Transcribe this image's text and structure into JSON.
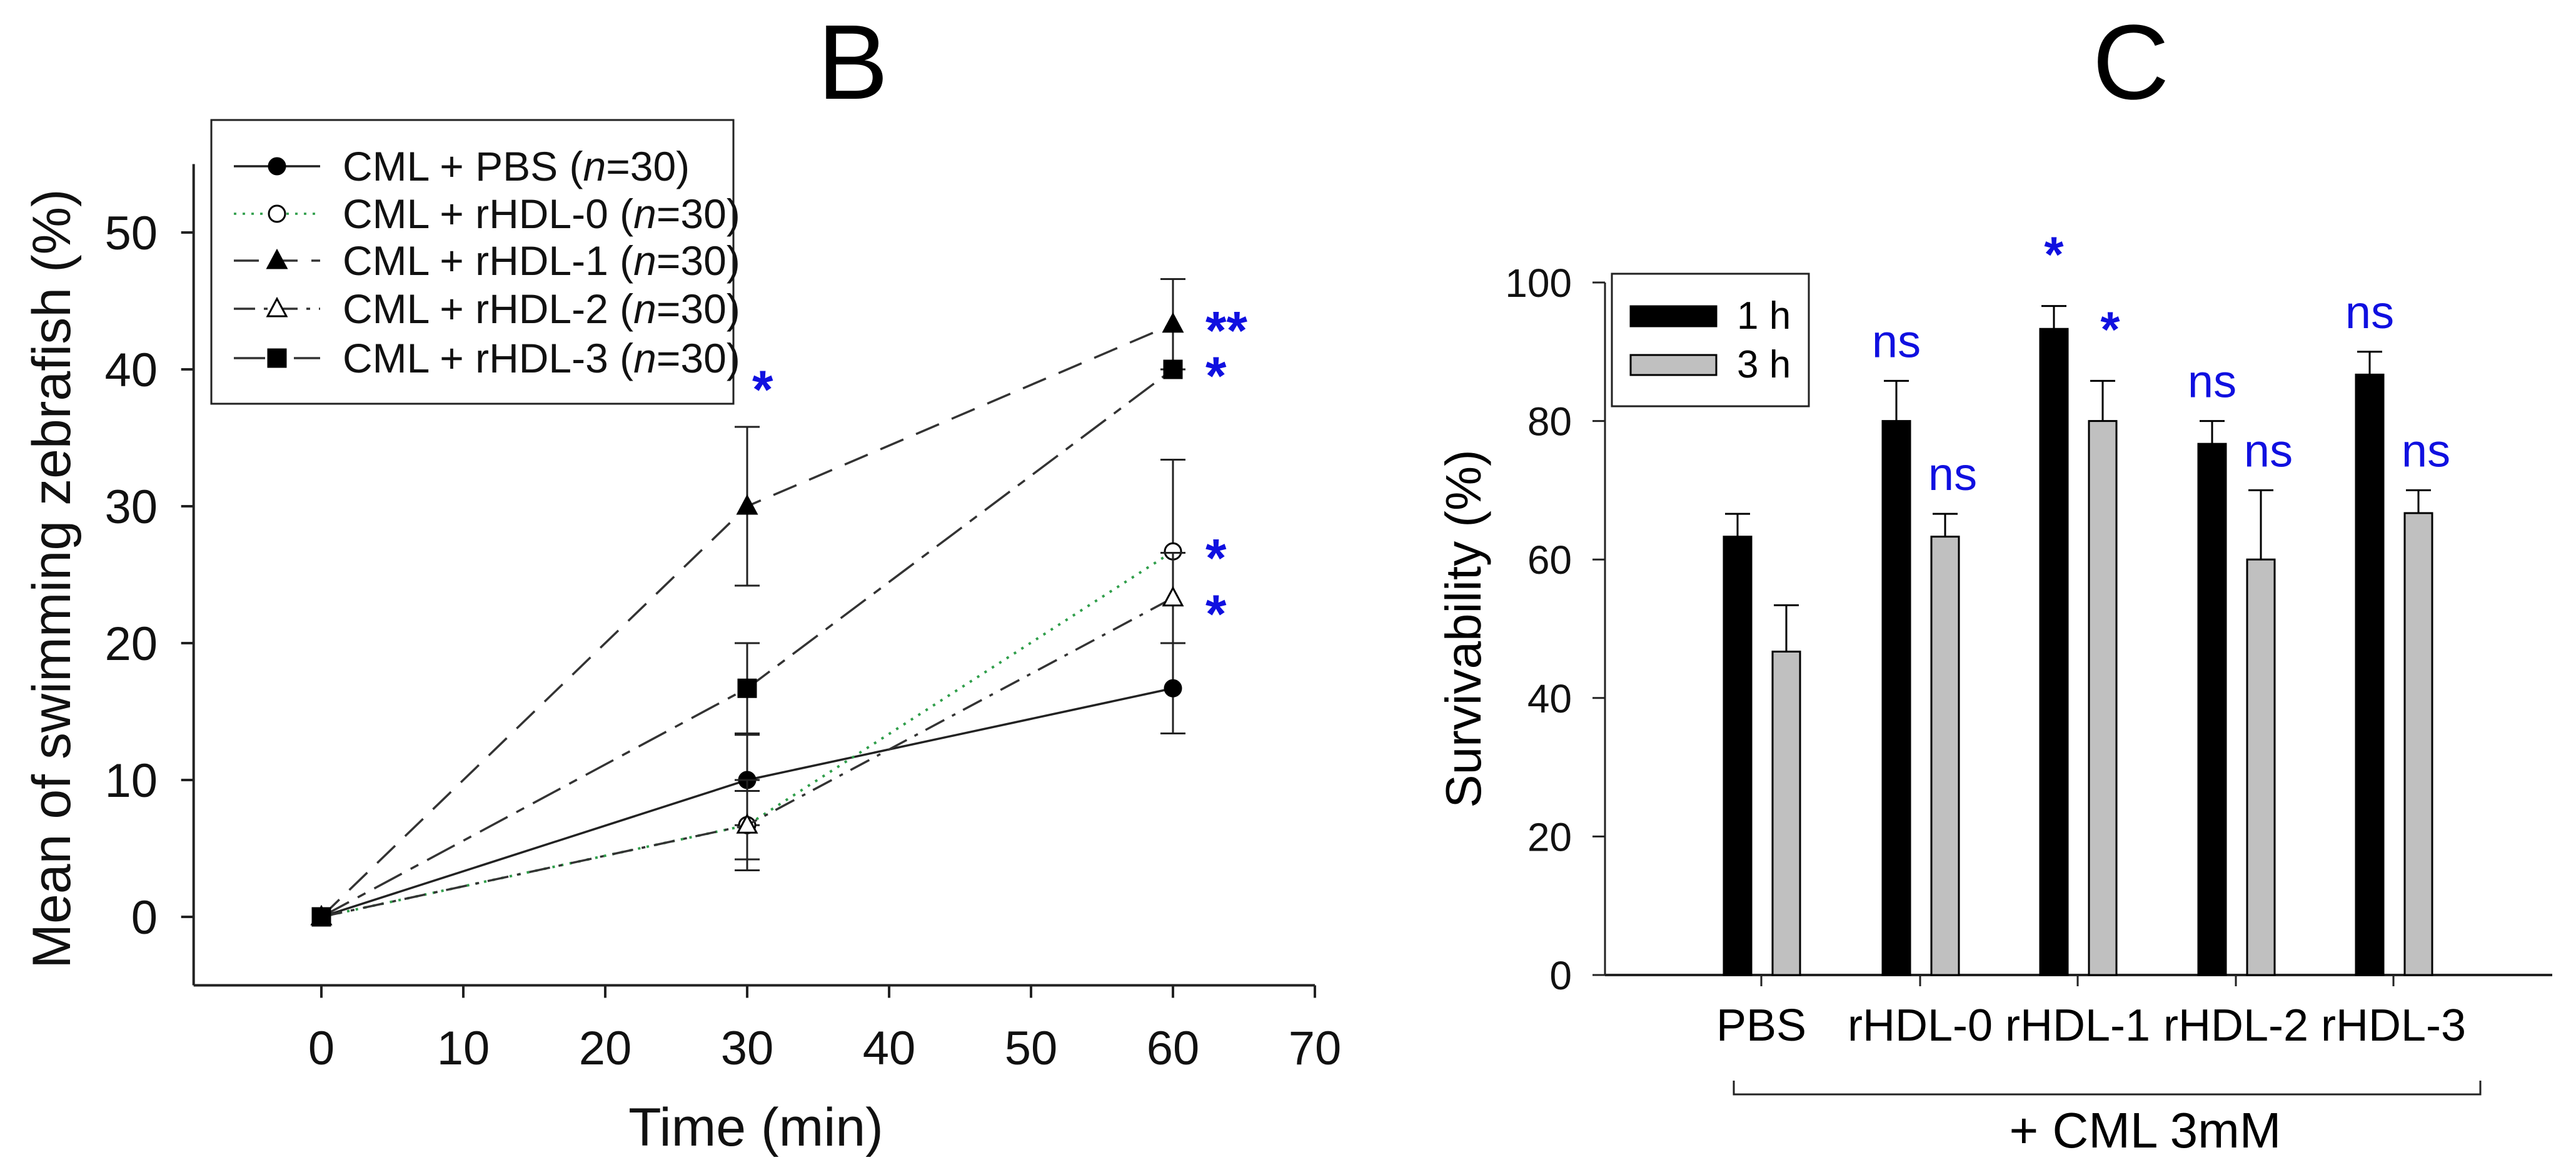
{
  "chart_data": [
    {
      "panel": "B",
      "type": "line",
      "title": "B",
      "xlabel": "Time (min)",
      "ylabel": "Mean of swimming zebrafish (%)",
      "xlim": [
        -9,
        70
      ],
      "ylim": [
        -5,
        55
      ],
      "xticks": [
        "0",
        "10",
        "20",
        "30",
        "40",
        "50",
        "60",
        "70"
      ],
      "yticks": [
        "0",
        "10",
        "20",
        "30",
        "40",
        "50"
      ],
      "legend_position": "top-left",
      "x": [
        0,
        30,
        60
      ],
      "series": [
        {
          "name": "CML + PBS",
          "n_label": "n",
          "n_value": "=30)",
          "marker": "filled-circle",
          "line": "solid",
          "color": "#222222",
          "values": [
            0,
            10,
            16.7
          ],
          "errors": [
            0,
            3.3,
            3.3
          ]
        },
        {
          "name": "CML + rHDL-0",
          "n_label": "n",
          "n_value": "=30)",
          "marker": "open-circle",
          "line": "dotted",
          "color": "#2f9e4a",
          "values": [
            0,
            6.7,
            26.7
          ],
          "errors": [
            0,
            3.3,
            6.7
          ]
        },
        {
          "name": "CML + rHDL-1",
          "n_label": "n",
          "n_value": "=30)",
          "marker": "filled-triangle",
          "line": "long-dash",
          "color": "#333333",
          "values": [
            0,
            30,
            43.3
          ],
          "errors": [
            0,
            5.8,
            3.3
          ]
        },
        {
          "name": "CML + rHDL-2",
          "n_label": "n",
          "n_value": "=30)",
          "marker": "open-triangle",
          "line": "dash-dot",
          "color": "#333333",
          "values": [
            0,
            6.7,
            23.3
          ],
          "errors": [
            0,
            2.5,
            3.3
          ]
        },
        {
          "name": "CML + rHDL-3",
          "n_label": "n",
          "n_value": "=30)",
          "marker": "filled-square",
          "line": "dash",
          "color": "#333333",
          "values": [
            0,
            16.7,
            40
          ],
          "errors": [
            0,
            3.3,
            0
          ]
        }
      ],
      "annotations": [
        {
          "text": "*",
          "x": 30,
          "y": 39
        },
        {
          "text": "**",
          "x": 60,
          "y": 43.3
        },
        {
          "text": "*",
          "x": 60,
          "y": 40
        },
        {
          "text": "*",
          "x": 60,
          "y": 26.7
        },
        {
          "text": "*",
          "x": 60,
          "y": 22.6
        }
      ]
    },
    {
      "panel": "C",
      "type": "bar",
      "title": "C",
      "xlabel": "+ CML 3mM",
      "ylabel": "Survivability (%)",
      "ylim": [
        0,
        100
      ],
      "yticks": [
        "0",
        "20",
        "40",
        "60",
        "80",
        "100"
      ],
      "legend_position": "top-left",
      "categories": [
        "PBS",
        "rHDL-0",
        "rHDL-1",
        "rHDL-2",
        "rHDL-3"
      ],
      "series": [
        {
          "name": "1 h",
          "color": "#000000",
          "values": [
            63.3,
            80,
            93.3,
            76.7,
            86.7
          ],
          "errors": [
            3.3,
            5.8,
            3.3,
            3.3,
            3.3
          ],
          "labels": [
            "",
            "ns",
            "*",
            "ns",
            "ns"
          ]
        },
        {
          "name": "3 h",
          "color": "#c0c0c0",
          "values": [
            46.7,
            63.3,
            80,
            60,
            66.7
          ],
          "errors": [
            6.7,
            3.3,
            5.8,
            10,
            3.3
          ],
          "labels": [
            "",
            "ns",
            "*",
            "ns",
            "ns"
          ]
        }
      ]
    }
  ],
  "colors": {
    "significance": "#1010e0",
    "axis": "#222222"
  }
}
